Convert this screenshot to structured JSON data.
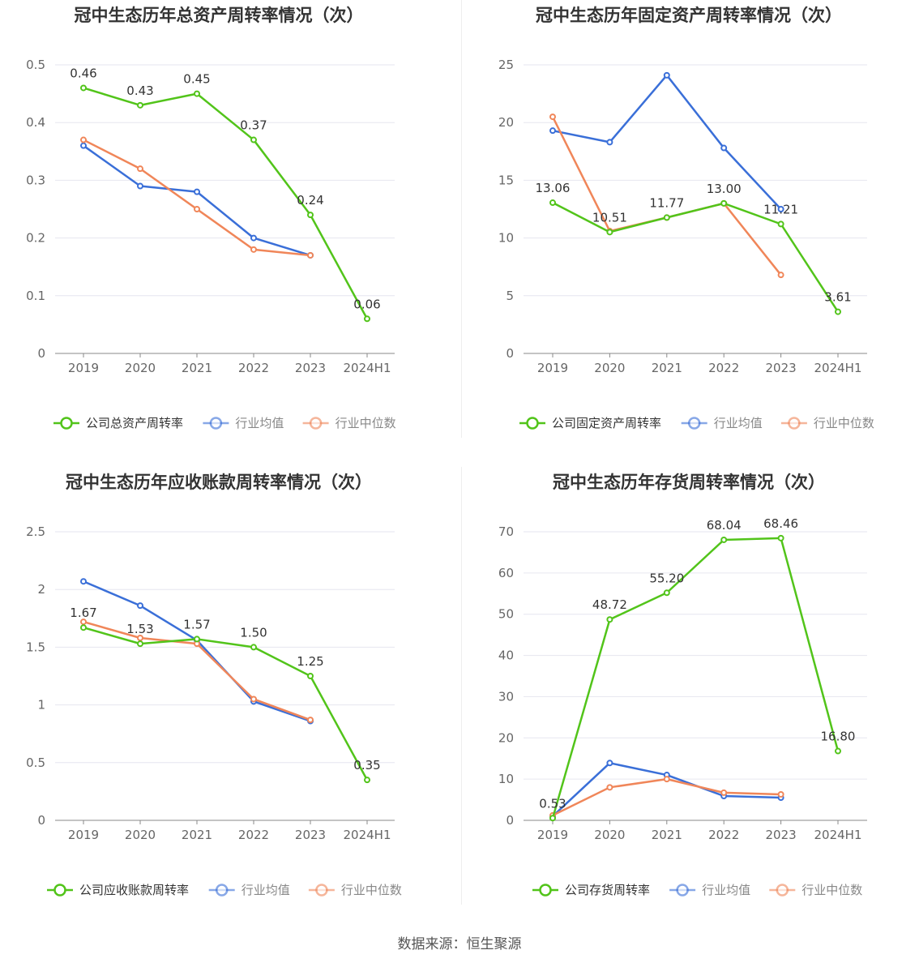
{
  "colors": {
    "company": "#52c41a",
    "avg": "#3a6fd8",
    "median": "#f08659",
    "grid": "#e6e6ef",
    "axis": "#666666",
    "title": "#333333"
  },
  "source_text": "数据来源：恒生聚源",
  "chart_data": [
    {
      "type": "line",
      "title": "冠中生态历年总资产周转率情况（次）",
      "categories": [
        "2019",
        "2020",
        "2021",
        "2022",
        "2023",
        "2024H1"
      ],
      "yticks": [
        "0",
        "0.1",
        "0.2",
        "0.3",
        "0.4",
        "0.5"
      ],
      "ylim": [
        0,
        0.5
      ],
      "series": [
        {
          "name": "公司总资产周转率",
          "key": "company",
          "values": [
            0.46,
            0.43,
            0.45,
            0.37,
            0.24,
            0.06
          ],
          "labels": [
            "0.46",
            "0.43",
            "0.45",
            "0.37",
            "0.24",
            "0.06"
          ]
        },
        {
          "name": "行业均值",
          "key": "avg",
          "values": [
            0.36,
            0.29,
            0.28,
            0.2,
            0.17,
            null
          ]
        },
        {
          "name": "行业中位数",
          "key": "median",
          "values": [
            0.37,
            0.32,
            0.25,
            0.18,
            0.17,
            null
          ]
        }
      ]
    },
    {
      "type": "line",
      "title": "冠中生态历年固定资产周转率情况（次）",
      "categories": [
        "2019",
        "2020",
        "2021",
        "2022",
        "2023",
        "2024H1"
      ],
      "yticks": [
        "0",
        "5",
        "10",
        "15",
        "20",
        "25"
      ],
      "ylim": [
        0,
        25
      ],
      "series": [
        {
          "name": "公司固定资产周转率",
          "key": "company",
          "values": [
            13.06,
            10.51,
            11.77,
            13.0,
            11.21,
            3.61
          ],
          "labels": [
            "13.06",
            "10.51",
            "11.77",
            "13.00",
            "11.21",
            "3.61"
          ]
        },
        {
          "name": "行业均值",
          "key": "avg",
          "values": [
            19.3,
            18.3,
            24.1,
            17.8,
            12.5,
            null
          ]
        },
        {
          "name": "行业中位数",
          "key": "median",
          "values": [
            20.5,
            10.6,
            11.77,
            13.0,
            6.8,
            null
          ]
        }
      ]
    },
    {
      "type": "line",
      "title": "冠中生态历年应收账款周转率情况（次）",
      "categories": [
        "2019",
        "2020",
        "2021",
        "2022",
        "2023",
        "2024H1"
      ],
      "yticks": [
        "0",
        "0.5",
        "1",
        "1.5",
        "2",
        "2.5"
      ],
      "ylim": [
        0,
        2.5
      ],
      "series": [
        {
          "name": "公司应收账款周转率",
          "key": "company",
          "values": [
            1.67,
            1.53,
            1.57,
            1.5,
            1.25,
            0.35
          ],
          "labels": [
            "1.67",
            "1.53",
            "1.57",
            "1.50",
            "1.25",
            "0.35"
          ]
        },
        {
          "name": "行业均值",
          "key": "avg",
          "values": [
            2.07,
            1.86,
            1.56,
            1.03,
            0.86,
            null
          ]
        },
        {
          "name": "行业中位数",
          "key": "median",
          "values": [
            1.72,
            1.58,
            1.53,
            1.05,
            0.87,
            null
          ]
        }
      ]
    },
    {
      "type": "line",
      "title": "冠中生态历年存货周转率情况（次）",
      "categories": [
        "2019",
        "2020",
        "2021",
        "2022",
        "2023",
        "2024H1"
      ],
      "yticks": [
        "0",
        "10",
        "20",
        "30",
        "40",
        "50",
        "60",
        "70"
      ],
      "ylim": [
        0,
        70
      ],
      "series": [
        {
          "name": "公司存货周转率",
          "key": "company",
          "values": [
            0.53,
            48.72,
            55.2,
            68.04,
            68.46,
            16.8
          ],
          "labels": [
            "0.53",
            "48.72",
            "55.20",
            "68.04",
            "68.46",
            "16.80"
          ]
        },
        {
          "name": "行业均值",
          "key": "avg",
          "values": [
            1.0,
            13.9,
            11.0,
            5.9,
            5.5,
            null
          ]
        },
        {
          "name": "行业中位数",
          "key": "median",
          "values": [
            1.2,
            8.0,
            10.0,
            6.7,
            6.3,
            null
          ]
        }
      ]
    }
  ]
}
